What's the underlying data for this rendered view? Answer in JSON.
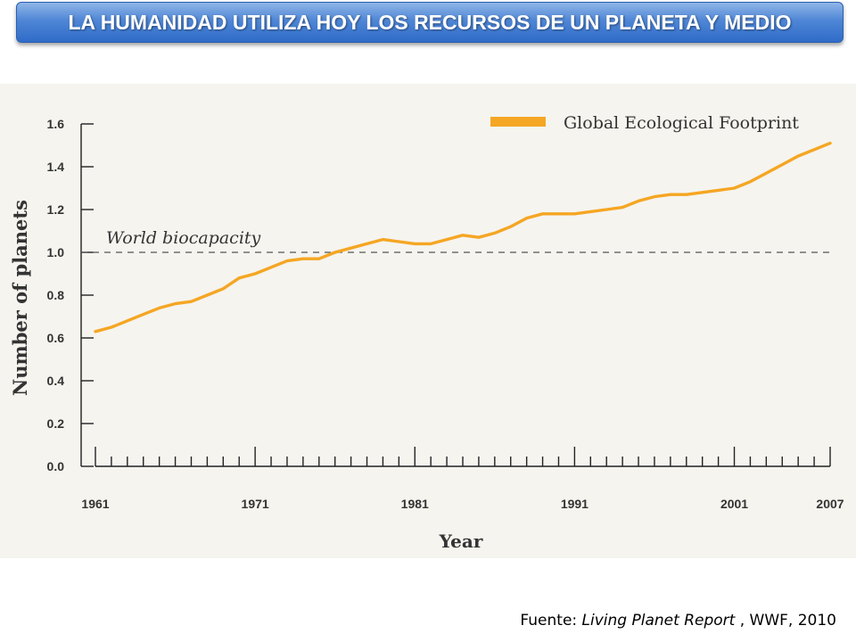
{
  "header": {
    "title": "LA HUMANIDAD UTILIZA HOY LOS RECURSOS DE UN PLANETA Y MEDIO"
  },
  "source": {
    "prefix": "Fuente: ",
    "report": "Living Planet Report",
    "suffix": " , WWF, 2010"
  },
  "colors": {
    "series": "#f5a623",
    "banner": "#3b74cc",
    "panel": "#f5f4ef"
  },
  "chart_data": {
    "type": "line",
    "xlabel": "Year",
    "ylabel": "Number of planets",
    "xlim": [
      1961,
      2007
    ],
    "ylim": [
      0,
      1.6
    ],
    "x_tick_labels": [
      "1961",
      "1971",
      "1981",
      "1991",
      "2001",
      "2007"
    ],
    "y_tick_labels": [
      "0.0",
      "0.2",
      "0.4",
      "0.6",
      "0.8",
      "1.0",
      "1.2",
      "1.4",
      "1.6"
    ],
    "legend_position": "top-right",
    "reference_line": {
      "label": "World biocapacity",
      "y": 1.0,
      "style": "dashed"
    },
    "series": [
      {
        "name": "Global Ecological Footprint",
        "x": [
          1961,
          1962,
          1963,
          1964,
          1965,
          1966,
          1967,
          1968,
          1969,
          1970,
          1971,
          1972,
          1973,
          1974,
          1975,
          1976,
          1977,
          1978,
          1979,
          1980,
          1981,
          1982,
          1983,
          1984,
          1985,
          1986,
          1987,
          1988,
          1989,
          1990,
          1991,
          1992,
          1993,
          1994,
          1995,
          1996,
          1997,
          1998,
          1999,
          2000,
          2001,
          2002,
          2003,
          2004,
          2005,
          2006,
          2007
        ],
        "values": [
          0.63,
          0.65,
          0.68,
          0.71,
          0.74,
          0.76,
          0.77,
          0.8,
          0.83,
          0.88,
          0.9,
          0.93,
          0.96,
          0.97,
          0.97,
          1.0,
          1.02,
          1.04,
          1.06,
          1.05,
          1.04,
          1.04,
          1.06,
          1.08,
          1.07,
          1.09,
          1.12,
          1.16,
          1.18,
          1.18,
          1.18,
          1.19,
          1.2,
          1.21,
          1.24,
          1.26,
          1.27,
          1.27,
          1.28,
          1.29,
          1.3,
          1.33,
          1.37,
          1.41,
          1.45,
          1.48,
          1.51
        ]
      }
    ]
  }
}
